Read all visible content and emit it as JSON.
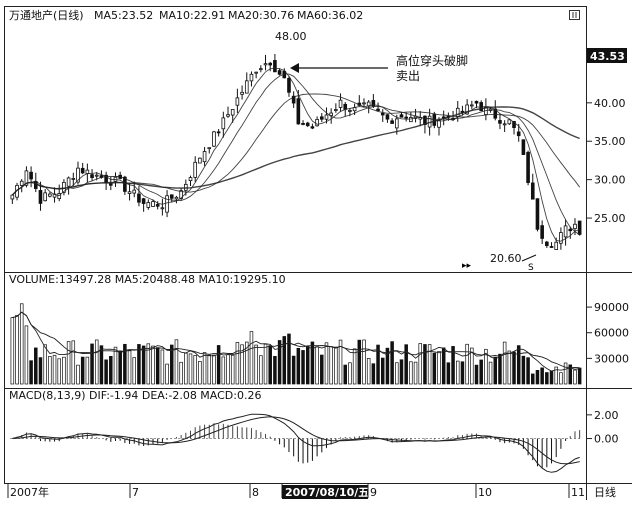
{
  "stock_title": "万通地产(日线)",
  "ma_readout": [
    "MA5:23.52",
    "MA10:22.91",
    "MA20:30.76",
    "MA60:36.02"
  ],
  "volume_readout": "VOLUME:13497.28 MA5:20488.48 MA10:19295.10",
  "macd_readout": "MACD(8,13,9) DIF:-1.94 DEA:-2.08 MACD:0.26",
  "last_price_tag": "43.53",
  "annotation_line1": "高位穿头破脚",
  "annotation_line2": "卖出",
  "high_label": "48.00",
  "low_label": "20.60",
  "period_label": "日线",
  "date_cursor": "2007/08/10/五",
  "colors": {
    "up": "#ffffff",
    "down": "#111111",
    "ma": "#222222",
    "grid": "#999999"
  },
  "chart_data": [
    {
      "type": "candlestick",
      "title": "万通地产(日线)",
      "ylim": [
        18.5,
        50
      ],
      "y_ticks": [
        "25.00",
        "30.00",
        "35.00",
        "40.00"
      ],
      "x_ticks": [
        "2007年",
        "7",
        "8",
        "2007/08/10/五",
        "9",
        "10",
        "11"
      ],
      "annotations": [
        {
          "text": "48.00",
          "at": "high"
        },
        {
          "text": "20.60",
          "at": "low"
        },
        {
          "text": "高位穿头破脚 卖出",
          "points_to": "high"
        }
      ],
      "series": [
        {
          "name": "MA5",
          "last": 23.52
        },
        {
          "name": "MA10",
          "last": 22.91
        },
        {
          "name": "MA20",
          "last": 30.76
        },
        {
          "name": "MA60",
          "last": 36.02
        }
      ],
      "anchors": [
        {
          "t": 0,
          "price": 28.0
        },
        {
          "t": 3,
          "price": 31.5
        },
        {
          "t": 6,
          "price": 27.5
        },
        {
          "t": 10,
          "price": 28.5
        },
        {
          "t": 14,
          "price": 31.5
        },
        {
          "t": 18,
          "price": 30.5
        },
        {
          "t": 23,
          "price": 29.5
        },
        {
          "t": 28,
          "price": 27.0
        },
        {
          "t": 32,
          "price": 26.8
        },
        {
          "t": 36,
          "price": 28.5
        },
        {
          "t": 40,
          "price": 33.0
        },
        {
          "t": 44,
          "price": 36.5
        },
        {
          "t": 48,
          "price": 40.5
        },
        {
          "t": 52,
          "price": 44.5
        },
        {
          "t": 55,
          "price": 45.5
        },
        {
          "t": 58,
          "price": 43.0
        },
        {
          "t": 61,
          "price": 37.5
        },
        {
          "t": 64,
          "price": 36.8
        },
        {
          "t": 67,
          "price": 38.5
        },
        {
          "t": 70,
          "price": 40.0
        },
        {
          "t": 73,
          "price": 39.0
        },
        {
          "t": 76,
          "price": 39.5
        },
        {
          "t": 80,
          "price": 37.8
        },
        {
          "t": 84,
          "price": 38.5
        },
        {
          "t": 88,
          "price": 37.5
        },
        {
          "t": 92,
          "price": 38.0
        },
        {
          "t": 96,
          "price": 38.8
        },
        {
          "t": 99,
          "price": 40.0
        },
        {
          "t": 101,
          "price": 39.0
        },
        {
          "t": 104,
          "price": 38.0
        },
        {
          "t": 106,
          "price": 37.5
        },
        {
          "t": 108,
          "price": 35.5
        },
        {
          "t": 110,
          "price": 30.0
        },
        {
          "t": 112,
          "price": 24.0
        },
        {
          "t": 114,
          "price": 22.0
        },
        {
          "t": 116,
          "price": 21.8
        },
        {
          "t": 118,
          "price": 23.5
        },
        {
          "t": 120,
          "price": 24.2
        },
        {
          "t": 121,
          "price": 23.5
        }
      ]
    },
    {
      "type": "bar",
      "title": "VOLUME",
      "series": [
        {
          "name": "VOLUME",
          "last": 13497.28
        },
        {
          "name": "MA5",
          "last": 20488.48
        },
        {
          "name": "MA10",
          "last": 19295.1
        }
      ],
      "y_ticks": [
        "30000",
        "60000",
        "90000"
      ],
      "ylim": [
        0,
        110000
      ]
    },
    {
      "type": "bar",
      "title": "MACD(8,13,9)",
      "series": [
        {
          "name": "DIF",
          "last": -1.94
        },
        {
          "name": "DEA",
          "last": -2.08
        },
        {
          "name": "MACD",
          "last": 0.26
        }
      ],
      "y_ticks": [
        "0.00",
        "2.00"
      ],
      "ylim": [
        -3.5,
        3.0
      ]
    }
  ]
}
